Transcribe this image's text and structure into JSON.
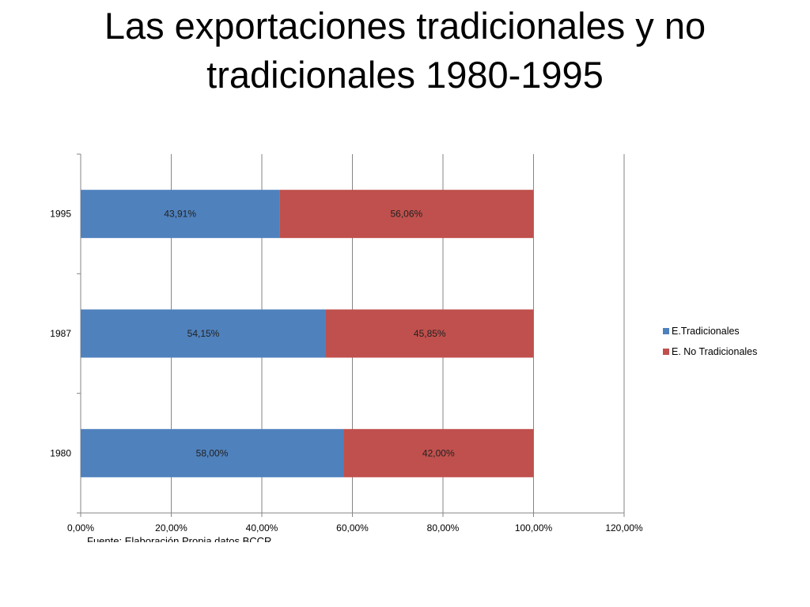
{
  "slide": {
    "title_line1": "Las exportaciones tradicionales y no",
    "title_line2": "tradicionales 1980-1995",
    "source_note": "Fuente: Elaboración Propia datos BCCR"
  },
  "chart_data": {
    "type": "bar",
    "orientation": "horizontal",
    "stacked": true,
    "categories": [
      "1980",
      "1987",
      "1995"
    ],
    "series": [
      {
        "name": "E.Tradicionales",
        "color": "#4F81BD",
        "values": [
          58.0,
          54.15,
          43.91
        ],
        "labels": [
          "58,00%",
          "54,15%",
          "43,91%"
        ]
      },
      {
        "name": "E. No Tradicionales",
        "color": "#C0504D",
        "values": [
          42.0,
          45.85,
          56.06
        ],
        "labels": [
          "42,00%",
          "45,85%",
          "56,06%"
        ]
      }
    ],
    "xlim": [
      0,
      120
    ],
    "xticks": [
      0,
      20,
      40,
      60,
      80,
      100,
      120
    ],
    "xtick_labels": [
      "0,00%",
      "20,00%",
      "40,00%",
      "60,00%",
      "80,00%",
      "100,00%",
      "120,00%"
    ],
    "grid": "vertical",
    "legend": "right"
  }
}
